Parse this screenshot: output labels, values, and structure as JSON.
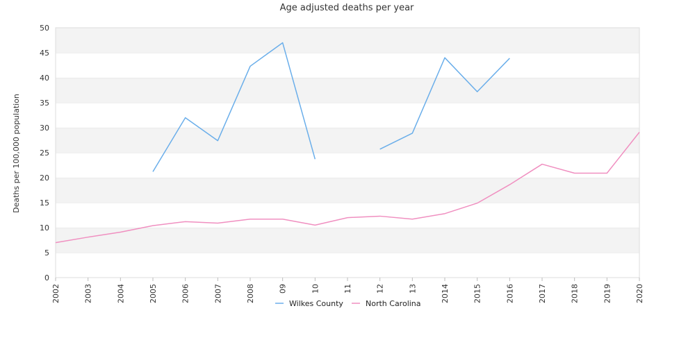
{
  "chart_data": {
    "type": "line",
    "title": "Age adjusted deaths per year",
    "xlabel": "",
    "ylabel": "Deaths per 100,000 population",
    "ylim": [
      0,
      50
    ],
    "yticks": [
      0,
      5,
      10,
      15,
      20,
      25,
      30,
      35,
      40,
      45,
      50
    ],
    "categories": [
      "2002",
      "2003",
      "2004",
      "2005",
      "2006",
      "2007",
      "2008",
      "09",
      "10",
      "11",
      "12",
      "13",
      "2014",
      "2015",
      "2016",
      "2017",
      "2018",
      "2019",
      "2020"
    ],
    "grid": "horizontal-bands",
    "legend_position": "bottom-center",
    "series": [
      {
        "name": "Wilkes County",
        "color": "#6aaeea",
        "values": [
          null,
          null,
          null,
          21.2,
          32.0,
          27.4,
          42.3,
          47.0,
          23.7,
          null,
          25.7,
          28.9,
          44.0,
          37.2,
          43.9,
          null,
          null,
          null,
          null
        ]
      },
      {
        "name": "North Carolina",
        "color": "#f08fc0",
        "values": [
          7.0,
          8.1,
          9.1,
          10.4,
          11.2,
          10.9,
          11.7,
          11.7,
          10.5,
          12.0,
          12.3,
          11.7,
          12.8,
          14.9,
          18.6,
          22.7,
          20.9,
          20.9,
          29.1
        ]
      }
    ]
  }
}
